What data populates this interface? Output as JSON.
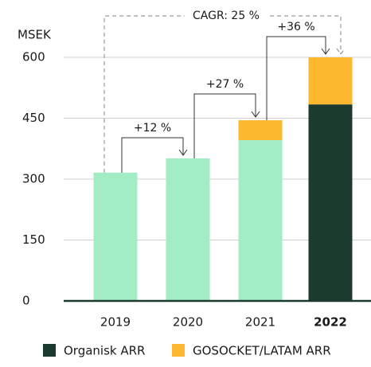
{
  "chart_data": {
    "type": "stacked_bar",
    "y_label": "MSEK",
    "categories": [
      "2019",
      "2020",
      "2021",
      "2022"
    ],
    "series": [
      {
        "name": "Organisk ARR",
        "color": "#1c3b2f",
        "bar_colors": [
          "#a2ecc6",
          "#a2ecc6",
          "#a2ecc6",
          "#1c3b2f"
        ],
        "values": [
          316,
          351,
          396,
          484
        ]
      },
      {
        "name": "GOSOCKET/LATAM ARR",
        "color": "#fbb72e",
        "values": [
          0,
          0,
          49,
          116
        ]
      }
    ],
    "annotations": [
      "+12 %",
      "+27 %",
      "+36 %",
      "CAGR: 25 %"
    ],
    "ylim": [
      0,
      600
    ],
    "yticks": [
      0,
      150,
      300,
      450,
      600
    ],
    "grid": true
  }
}
